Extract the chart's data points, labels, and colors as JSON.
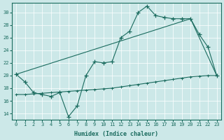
{
  "title": "",
  "xlabel": "Humidex (Indice chaleur)",
  "bg_color": "#cce8e8",
  "line_color": "#1a6b5e",
  "xlim": [
    -0.5,
    23.5
  ],
  "ylim": [
    13,
    31.5
  ],
  "yticks": [
    14,
    16,
    18,
    20,
    22,
    24,
    26,
    28,
    30
  ],
  "xticks": [
    0,
    1,
    2,
    3,
    4,
    5,
    6,
    7,
    8,
    9,
    10,
    11,
    12,
    13,
    14,
    15,
    16,
    17,
    18,
    19,
    20,
    21,
    22,
    23
  ],
  "line1_x": [
    0,
    1,
    2,
    3,
    4,
    5,
    6,
    7,
    8,
    9,
    10,
    11,
    12,
    13,
    14,
    15,
    16,
    17,
    18,
    19,
    20,
    21,
    22,
    23
  ],
  "line1_y": [
    20.2,
    19.0,
    17.3,
    17.0,
    16.7,
    17.3,
    13.5,
    15.2,
    20.0,
    22.2,
    22.0,
    22.2,
    26.0,
    27.0,
    30.0,
    31.0,
    29.5,
    29.2,
    29.0,
    29.0,
    29.0,
    26.5,
    24.5,
    20.0
  ],
  "line2_x": [
    0,
    20,
    23
  ],
  "line2_y": [
    20.2,
    29.0,
    20.0
  ],
  "line3_x": [
    0,
    1,
    2,
    3,
    4,
    5,
    6,
    7,
    8,
    9,
    10,
    11,
    12,
    13,
    14,
    15,
    16,
    17,
    18,
    19,
    20,
    21,
    22,
    23
  ],
  "line3_y": [
    17.0,
    17.0,
    17.1,
    17.2,
    17.3,
    17.4,
    17.5,
    17.6,
    17.7,
    17.8,
    17.9,
    18.0,
    18.2,
    18.4,
    18.6,
    18.8,
    19.0,
    19.2,
    19.4,
    19.6,
    19.8,
    19.9,
    20.0,
    20.0
  ]
}
